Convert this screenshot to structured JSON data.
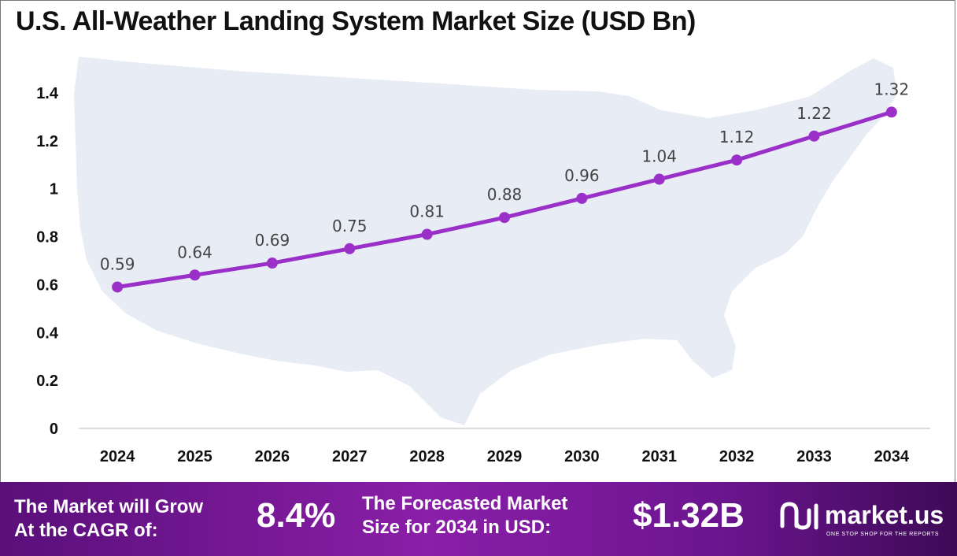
{
  "title": "U.S. All-Weather Landing System Market Size (USD Bn)",
  "chart_data": {
    "type": "line",
    "title": "U.S. All-Weather Landing System Market Size (USD Bn)",
    "xlabel": "",
    "ylabel": "",
    "categories": [
      "2024",
      "2025",
      "2026",
      "2027",
      "2028",
      "2029",
      "2030",
      "2031",
      "2032",
      "2033",
      "2034"
    ],
    "series": [
      {
        "values": [
          0.59,
          0.64,
          0.69,
          0.75,
          0.81,
          0.88,
          0.96,
          1.04,
          1.12,
          1.22,
          1.32
        ]
      }
    ],
    "data_labels": [
      "0.59",
      "0.64",
      "0.69",
      "0.75",
      "0.81",
      "0.88",
      "0.96",
      "1.04",
      "1.12",
      "1.22",
      "1.32"
    ],
    "y_ticks": [
      "0",
      "0.2",
      "0.4",
      "0.6",
      "0.8",
      "1",
      "1.2",
      "1.4"
    ],
    "ylim": [
      0,
      1.4
    ],
    "grid": false,
    "legend": "none",
    "line_color": "#9b30c8",
    "marker_color": "#9b30c8",
    "background_map": "us-map-silhouette"
  },
  "footer": {
    "cagr_text_line1": "The Market will Grow",
    "cagr_text_line2": "At the CAGR of:",
    "cagr_value": "8.4%",
    "forecast_text_line1": "The Forecasted Market",
    "forecast_text_line2": "Size for 2034 in USD:",
    "forecast_value": "$1.32B",
    "brand_name": "market.us",
    "brand_tagline": "ONE STOP SHOP FOR THE REPORTS",
    "bg_color_start": "#5a0f7a",
    "bg_color_end": "#3e0a57"
  }
}
